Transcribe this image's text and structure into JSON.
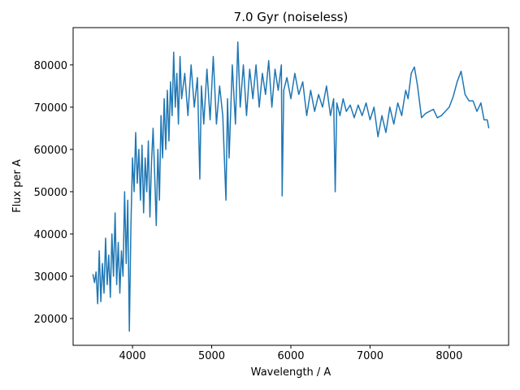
{
  "chart_data": {
    "type": "line",
    "title": "7.0 Gyr (noiseless)",
    "x_label": "Wavelength / A",
    "y_label": "Flux per A",
    "color": "#1f77b4",
    "xlim": [
      3250,
      8750
    ],
    "ylim": [
      13660,
      88820
    ],
    "xticks": [
      4000,
      5000,
      6000,
      7000,
      8000
    ],
    "yticks": [
      20000,
      30000,
      40000,
      50000,
      60000,
      70000,
      80000
    ],
    "x": [
      3500,
      3520,
      3540,
      3560,
      3580,
      3600,
      3620,
      3640,
      3660,
      3680,
      3700,
      3720,
      3740,
      3760,
      3780,
      3800,
      3820,
      3840,
      3860,
      3880,
      3900,
      3920,
      3940,
      3960,
      3980,
      4000,
      4020,
      4040,
      4060,
      4080,
      4100,
      4120,
      4140,
      4160,
      4180,
      4200,
      4220,
      4240,
      4260,
      4280,
      4300,
      4320,
      4340,
      4360,
      4380,
      4400,
      4420,
      4440,
      4460,
      4480,
      4500,
      4520,
      4540,
      4560,
      4580,
      4600,
      4620,
      4660,
      4700,
      4740,
      4780,
      4820,
      4850,
      4870,
      4900,
      4940,
      4980,
      5020,
      5060,
      5100,
      5140,
      5180,
      5200,
      5220,
      5260,
      5300,
      5330,
      5360,
      5400,
      5440,
      5480,
      5520,
      5560,
      5600,
      5640,
      5680,
      5720,
      5760,
      5800,
      5840,
      5880,
      5890,
      5910,
      5950,
      6000,
      6050,
      6100,
      6150,
      6200,
      6250,
      6300,
      6350,
      6400,
      6450,
      6500,
      6540,
      6560,
      6580,
      6620,
      6660,
      6700,
      6750,
      6800,
      6850,
      6900,
      6950,
      7000,
      7050,
      7100,
      7150,
      7200,
      7250,
      7300,
      7350,
      7400,
      7420,
      7450,
      7480,
      7520,
      7560,
      7600,
      7650,
      7700,
      7800,
      7850,
      7900,
      7950,
      8000,
      8050,
      8100,
      8150,
      8200,
      8250,
      8300,
      8350,
      8400,
      8440,
      8480,
      8500
    ],
    "values": [
      30500,
      28500,
      31000,
      23500,
      36000,
      24000,
      33000,
      26000,
      39000,
      28000,
      35000,
      25000,
      40000,
      30000,
      45000,
      28000,
      38000,
      26000,
      36000,
      30000,
      50000,
      33000,
      48000,
      17000,
      42000,
      58000,
      50000,
      64000,
      52000,
      60000,
      48000,
      61000,
      45000,
      58000,
      50000,
      62000,
      44000,
      57000,
      65000,
      54000,
      42000,
      60000,
      48000,
      68000,
      58000,
      72000,
      60000,
      74000,
      62000,
      76000,
      68000,
      83000,
      70000,
      78000,
      66000,
      82000,
      72000,
      78000,
      68000,
      80000,
      70000,
      77000,
      53000,
      75000,
      66000,
      79000,
      67000,
      82000,
      66000,
      75000,
      68000,
      48000,
      72000,
      58000,
      80000,
      66000,
      85400,
      70000,
      80000,
      68000,
      79000,
      72000,
      80000,
      70000,
      78000,
      73000,
      81000,
      70000,
      79000,
      74000,
      80000,
      49000,
      74000,
      77000,
      72000,
      78000,
      73000,
      76000,
      68000,
      74000,
      69000,
      73000,
      70000,
      75000,
      68000,
      72000,
      50000,
      71000,
      68000,
      72000,
      69000,
      70500,
      67500,
      70500,
      68000,
      71000,
      67000,
      70000,
      63000,
      68000,
      64000,
      70000,
      66000,
      71000,
      68000,
      70500,
      74000,
      72000,
      78000,
      79500,
      75000,
      67500,
      68500,
      69500,
      67500,
      68000,
      69000,
      70000,
      72500,
      76000,
      78500,
      73000,
      71500,
      71500,
      69000,
      71000,
      67000,
      67000,
      65000
    ]
  }
}
